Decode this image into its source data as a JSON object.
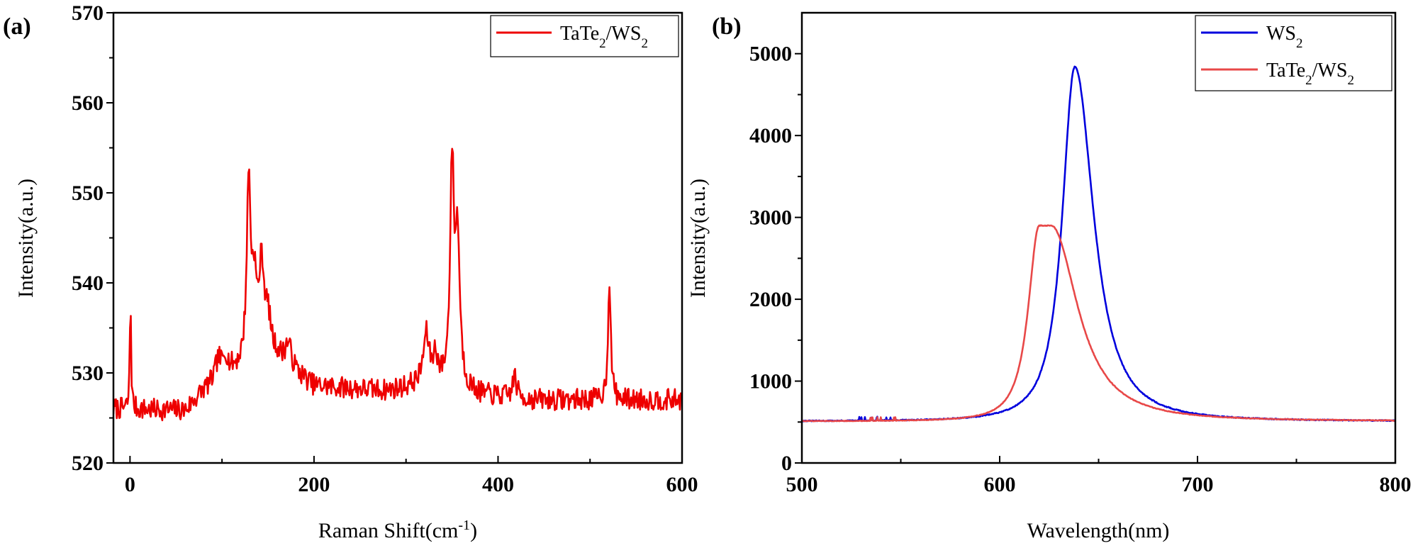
{
  "colors": {
    "red": "#ee0000",
    "blue": "#0000dd",
    "lightred": "#e84848"
  },
  "chart_data": [
    {
      "panel": "(a)",
      "type": "line",
      "xlabel": "Raman Shift(cm",
      "xlabel_sup": "-1",
      "xlabel_end": ")",
      "ylabel": "Intensity(a.u.)",
      "xlim": [
        -18,
        600
      ],
      "ylim": [
        520,
        570
      ],
      "xticks": [
        0,
        200,
        400,
        600
      ],
      "xtick_labels": [
        "0",
        "200",
        "400",
        "600"
      ],
      "yticks": [
        520,
        530,
        540,
        550,
        560,
        570
      ],
      "ytick_labels": [
        "520",
        "530",
        "540",
        "550",
        "560",
        "570"
      ],
      "legend": {
        "label": "TaTe",
        "sub1": "2",
        "slash": "/WS",
        "sub2": "2",
        "position": "top-right"
      },
      "series": [
        {
          "name": "TaTe2/WS2",
          "color": "#ee0000",
          "noise": 1.0,
          "baseline": [
            [
              -18,
              526.0
            ],
            [
              60,
              525.8
            ],
            [
              80,
              528
            ],
            [
              110,
              530
            ],
            [
              160,
              531.5
            ],
            [
              200,
              528.5
            ],
            [
              280,
              528
            ],
            [
              310,
              528.5
            ],
            [
              340,
              528.5
            ],
            [
              380,
              527.5
            ],
            [
              440,
              527
            ],
            [
              520,
              527
            ],
            [
              600,
              527
            ]
          ],
          "peaks": [
            [
              0.5,
              13,
              0.8
            ],
            [
              96,
              2.2,
              4
            ],
            [
              104,
              2,
              3
            ],
            [
              129,
              20,
              2.5
            ],
            [
              135,
              8,
              3
            ],
            [
              143,
              10,
              3.5
            ],
            [
              150,
              4,
              4
            ],
            [
              172,
              2.5,
              4
            ],
            [
              322,
              5.5,
              4
            ],
            [
              332,
              3,
              3
            ],
            [
              350,
              24,
              2.5
            ],
            [
              356,
              16,
              3
            ],
            [
              418,
              2.5,
              2.5
            ],
            [
              521,
              13.5,
              1.8
            ]
          ]
        }
      ]
    },
    {
      "panel": "(b)",
      "type": "line",
      "xlabel": "Wavelength(nm)",
      "ylabel": "Intensity(a.u.)",
      "xlim": [
        500,
        800
      ],
      "ylim": [
        0,
        5500
      ],
      "xticks": [
        500,
        600,
        700,
        800
      ],
      "xtick_labels": [
        "500",
        "600",
        "700",
        "800"
      ],
      "yticks": [
        0,
        1000,
        2000,
        3000,
        4000,
        5000
      ],
      "ytick_labels": [
        "0",
        "1000",
        "2000",
        "3000",
        "4000",
        "5000"
      ],
      "legend": [
        {
          "label": "WS",
          "sub": "2"
        },
        {
          "label": "TaTe",
          "sub1": "2",
          "slash": "/WS",
          "sub2": "2"
        }
      ],
      "legend_position": "top-right",
      "series": [
        {
          "name": "WS2",
          "color": "#0000dd",
          "baseline": 510,
          "peak_x": 638,
          "peak_y": 4840,
          "hwhm_left": 8,
          "hwhm_right": 12,
          "noise": 12
        },
        {
          "name": "TaTe2/WS2",
          "color": "#e84848",
          "baseline": 510,
          "peak_x": 623,
          "peak_y": 2900,
          "hwhm_left": 7,
          "hwhm_right": 17,
          "noise": 8,
          "flat_top": 3
        }
      ]
    }
  ]
}
